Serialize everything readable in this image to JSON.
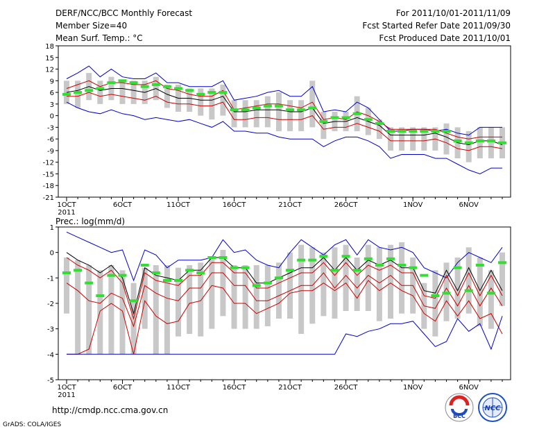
{
  "header": {
    "title": "DERF/NCC/BCC Monthly Forecast",
    "member_size": "Member Size=40",
    "variable": "Mean Surf. Temp.: °C",
    "period": "For 2011/10/01-2011/11/09",
    "started": "Fcst Started Refer Date 2011/09/30",
    "produced": "Fcst Produced Date 2011/10/01"
  },
  "footer": {
    "url": "http://cmdp.ncc.cma.gov.cn",
    "grads": "GrADS: COLA/IGES",
    "logo_bcc": "BCC",
    "logo_ncc": "NCC"
  },
  "colors": {
    "envelope": "#0000cc",
    "spread": "#cc0000",
    "mean": "#000000",
    "member_bar": "#c8c8c8",
    "marker": "#33dd33"
  },
  "chart_data": [
    {
      "type": "line",
      "title": "Mean Surf. Temp.: °C",
      "xlabel": "",
      "ylabel": "",
      "x": [
        1,
        2,
        3,
        4,
        5,
        6,
        7,
        8,
        9,
        10,
        11,
        12,
        13,
        14,
        15,
        16,
        17,
        18,
        19,
        20,
        21,
        22,
        23,
        24,
        25,
        26,
        27,
        28,
        29,
        30,
        31,
        32,
        33,
        34,
        35,
        36,
        37,
        38,
        39,
        40
      ],
      "ylim": [
        -21,
        18
      ],
      "yticks": [
        18,
        15,
        12,
        9,
        6,
        3,
        0,
        -3,
        -6,
        -9,
        -12,
        -15,
        -18,
        -21
      ],
      "xticks": [
        {
          "x": 1,
          "label": "1OCT"
        },
        {
          "x": 6,
          "label": "6OCT"
        },
        {
          "x": 11,
          "label": "11OCT"
        },
        {
          "x": 16,
          "label": "16OCT"
        },
        {
          "x": 21,
          "label": "21OCT"
        },
        {
          "x": 26,
          "label": "26OCT"
        },
        {
          "x": 32,
          "label": "1NOV"
        },
        {
          "x": 37,
          "label": "6NOV"
        }
      ],
      "year_label": "2011",
      "series": [
        {
          "name": "max",
          "values": [
            9.5,
            11,
            12.8,
            10,
            12,
            10,
            9.5,
            9.5,
            11,
            8.5,
            8.5,
            7.5,
            7.5,
            7.5,
            9,
            4,
            4.5,
            5,
            6,
            6.5,
            5,
            5,
            7.5,
            1,
            1.5,
            1,
            3.5,
            2,
            -1,
            -4,
            -4,
            -3.5,
            -3.5,
            -4,
            -3.5,
            -4.5,
            -5,
            -3,
            -3,
            -3
          ]
        },
        {
          "name": "upper",
          "values": [
            7,
            8,
            9,
            7.5,
            8.5,
            8.5,
            8,
            8,
            9,
            7,
            6.5,
            5.5,
            5,
            5,
            6.5,
            1.5,
            2,
            2.5,
            3,
            3,
            2.5,
            2,
            3.5,
            -1,
            -0.5,
            -1,
            1,
            0,
            -1.5,
            -3.5,
            -3.5,
            -3.5,
            -3.5,
            -3.5,
            -4.5,
            -5.5,
            -6,
            -5.5,
            -5.5,
            -5.5
          ]
        },
        {
          "name": "mean",
          "values": [
            6,
            6.5,
            7.5,
            6.5,
            7,
            7,
            6.5,
            6,
            7,
            5.5,
            4.5,
            4.5,
            4,
            4,
            5,
            1,
            1,
            1.5,
            1.5,
            1.5,
            1,
            1,
            2,
            -2,
            -1.5,
            -1.5,
            -0.5,
            -1.5,
            -2.5,
            -5,
            -5,
            -5,
            -5,
            -4.5,
            -5.5,
            -7,
            -7.5,
            -6.5,
            -6.5,
            -7.5
          ]
        },
        {
          "name": "lower",
          "values": [
            5,
            5,
            6,
            5,
            5.5,
            5,
            4.5,
            4,
            5,
            3.5,
            3,
            3,
            2.5,
            2.5,
            3.5,
            -1,
            -1,
            -0.5,
            -0.5,
            -1,
            -1,
            -1,
            0,
            -3.5,
            -3,
            -3,
            -2,
            -3,
            -4,
            -6.5,
            -6.5,
            -6.5,
            -6.5,
            -6,
            -7,
            -8.5,
            -9,
            -8,
            -8,
            -8.5
          ]
        },
        {
          "name": "min",
          "values": [
            3.5,
            2,
            1,
            0.5,
            1.5,
            0.5,
            0,
            -1,
            -0.5,
            -1,
            -1.5,
            -1,
            -2,
            -3,
            -1.5,
            -4,
            -4,
            -4.5,
            -4.5,
            -5.5,
            -6,
            -6,
            -6,
            -8,
            -6.5,
            -5.5,
            -5.5,
            -6.5,
            -8,
            -11,
            -10,
            -10,
            -10,
            -11,
            -11,
            -12.5,
            -14,
            -15,
            -13.5,
            -13.5
          ]
        }
      ],
      "bars": {
        "lows": [
          3,
          2,
          4,
          3,
          4,
          3,
          3,
          3,
          4,
          2,
          1,
          1,
          0,
          -1,
          0,
          -3,
          -3,
          -3,
          -3,
          -4,
          -4,
          -4,
          -3,
          -6,
          -4,
          -4,
          -4,
          -5,
          -6,
          -9,
          -9,
          -9,
          -9,
          -9,
          -10,
          -11,
          -12,
          -11,
          -11,
          -11
        ],
        "highs": [
          9,
          9,
          11,
          9,
          10,
          9,
          9,
          9,
          10,
          8,
          8,
          7,
          7,
          7,
          8,
          4,
          4,
          4,
          5,
          6,
          4,
          4,
          9,
          1,
          1,
          1,
          5,
          2,
          -1,
          -3,
          -3,
          -3,
          -3,
          -3,
          -2,
          -3,
          -4,
          -3,
          -3,
          -3
        ]
      },
      "markers": [
        5.5,
        6,
        6.5,
        7,
        8.5,
        9,
        8.5,
        7.5,
        8,
        7.5,
        7,
        6.5,
        5.5,
        6,
        6,
        1.5,
        1.5,
        2,
        2.5,
        2.5,
        1.5,
        1.5,
        2,
        -1.5,
        -0.5,
        -0.5,
        0.5,
        -1,
        -2,
        -4,
        -4,
        -4,
        -4,
        -4,
        -4,
        -6.5,
        -7,
        -6.5,
        -6.5,
        -7
      ]
    },
    {
      "type": "line",
      "title": "Prec.: log(mm/d)",
      "xlabel": "",
      "ylabel": "",
      "x": [
        1,
        2,
        3,
        4,
        5,
        6,
        7,
        8,
        9,
        10,
        11,
        12,
        13,
        14,
        15,
        16,
        17,
        18,
        19,
        20,
        21,
        22,
        23,
        24,
        25,
        26,
        27,
        28,
        29,
        30,
        31,
        32,
        33,
        34,
        35,
        36,
        37,
        38,
        39,
        40
      ],
      "ylim": [
        -5,
        1
      ],
      "yticks": [
        1,
        0,
        -1,
        -2,
        -3,
        -4,
        -5
      ],
      "xticks": [
        {
          "x": 1,
          "label": "1OCT"
        },
        {
          "x": 6,
          "label": "6OCT"
        },
        {
          "x": 11,
          "label": "11OCT"
        },
        {
          "x": 16,
          "label": "16OCT"
        },
        {
          "x": 21,
          "label": "21OCT"
        },
        {
          "x": 26,
          "label": "26OCT"
        },
        {
          "x": 32,
          "label": "1NOV"
        },
        {
          "x": 37,
          "label": "6NOV"
        }
      ],
      "year_label": "2011",
      "series": [
        {
          "name": "max",
          "values": [
            0.8,
            0.6,
            0.4,
            0.2,
            0.0,
            0.1,
            -1.1,
            0.1,
            -0.1,
            -0.6,
            -0.3,
            -0.3,
            -0.3,
            -0.2,
            0.5,
            0.0,
            0.1,
            -0.3,
            -0.5,
            -0.6,
            0.0,
            0.5,
            0.2,
            -0.1,
            0.3,
            0.5,
            -0.1,
            0.5,
            0.2,
            0.1,
            0.2,
            0.0,
            -0.6,
            -0.8,
            -1.0,
            -0.4,
            0.0,
            -0.2,
            -0.4,
            0.2
          ]
        },
        {
          "name": "mean",
          "values": [
            0.0,
            -0.3,
            -0.5,
            -0.8,
            -0.5,
            -1.0,
            -2.4,
            -0.6,
            -0.9,
            -1.0,
            -1.1,
            -0.7,
            -0.7,
            -0.2,
            -0.2,
            -0.6,
            -0.6,
            -1.2,
            -1.2,
            -1.0,
            -0.8,
            -0.6,
            -0.6,
            -0.2,
            -0.7,
            -0.2,
            -0.7,
            -0.3,
            -0.5,
            -0.3,
            -0.6,
            -0.6,
            -1.5,
            -1.6,
            -0.7,
            -1.5,
            -0.6,
            -1.5,
            -0.7,
            -1.5
          ]
        },
        {
          "name": "upper",
          "values": [
            -0.2,
            -0.5,
            -0.7,
            -1.0,
            -0.7,
            -1.2,
            -2.6,
            -0.8,
            -1.1,
            -1.2,
            -1.3,
            -0.9,
            -0.9,
            -0.4,
            -0.4,
            -0.8,
            -0.8,
            -1.4,
            -1.4,
            -1.2,
            -1.0,
            -0.8,
            -0.8,
            -0.4,
            -0.9,
            -0.4,
            -0.9,
            -0.5,
            -0.7,
            -0.5,
            -0.8,
            -0.8,
            -1.7,
            -1.8,
            -0.9,
            -1.7,
            -0.8,
            -1.7,
            -0.9,
            -1.7
          ]
        },
        {
          "name": "lower",
          "values": [
            -1.2,
            -1.5,
            -1.9,
            -2.0,
            -1.6,
            -1.8,
            -2.9,
            -1.3,
            -1.6,
            -1.8,
            -1.9,
            -1.4,
            -1.4,
            -0.8,
            -0.8,
            -1.3,
            -1.3,
            -1.9,
            -1.9,
            -1.7,
            -1.5,
            -1.3,
            -1.3,
            -0.8,
            -1.4,
            -0.9,
            -1.4,
            -0.9,
            -1.2,
            -0.9,
            -1.3,
            -1.3,
            -2.1,
            -2.2,
            -1.4,
            -2.1,
            -1.3,
            -2.1,
            -1.4,
            -2.1
          ]
        },
        {
          "name": "p10",
          "values": [
            -4,
            -4,
            -3.8,
            -2.3,
            -2.0,
            -2.3,
            -4.0,
            -1.9,
            -2.5,
            -2.8,
            -2.7,
            -2.0,
            -1.9,
            -1.3,
            -1.4,
            -2.0,
            -2.0,
            -2.4,
            -2.2,
            -2.0,
            -1.6,
            -1.5,
            -1.5,
            -1.2,
            -1.5,
            -1.2,
            -1.8,
            -1.1,
            -1.5,
            -1.2,
            -1.5,
            -1.7,
            -2.4,
            -2.7,
            -1.9,
            -2.5,
            -1.9,
            -2.6,
            -2.4,
            -3.2
          ]
        },
        {
          "name": "min",
          "values": [
            -4,
            -4,
            -4,
            -4,
            -4,
            -4,
            -4,
            -4,
            -4,
            -4,
            -4,
            -4,
            -4,
            -4,
            -4,
            -4,
            -4,
            -4,
            -4,
            -4,
            -4,
            -4,
            -4,
            -4,
            -4,
            -3.2,
            -3.3,
            -3.1,
            -3.0,
            -2.8,
            -2.8,
            -2.7,
            -3.2,
            -3.7,
            -3.5,
            -2.6,
            -3.1,
            -2.8,
            -3.8,
            -2.5
          ]
        }
      ],
      "bars": {
        "lows": [
          -2.4,
          -4,
          -4,
          -4,
          -4,
          -4,
          -4,
          -3,
          -4,
          -4,
          -3.3,
          -3.2,
          -3.3,
          -3,
          -2.5,
          -3,
          -3,
          -3,
          -2.9,
          -2.6,
          -2.6,
          -3.2,
          -2.8,
          -2.5,
          -2.6,
          -2.3,
          -2.3,
          -2.3,
          -2.7,
          -2.6,
          -2.4,
          -2.4,
          -3.0,
          -3.3,
          -2.7,
          -2.6,
          -2.4,
          -2.9,
          -3.0,
          -2.1
        ],
        "highs": [
          -0.2,
          -0.3,
          -0.5,
          -0.7,
          -0.5,
          -0.7,
          -1.2,
          -0.6,
          -0.5,
          -0.5,
          -0.6,
          -0.5,
          -0.4,
          -0.2,
          0.1,
          -0.5,
          -0.5,
          -0.5,
          -0.5,
          -0.4,
          0.0,
          0.3,
          0.2,
          0.0,
          0.2,
          0.3,
          -0.2,
          0.3,
          0.2,
          0.3,
          0.4,
          -0.2,
          -1.2,
          -0.7,
          -0.4,
          -0.2,
          0.2,
          -0.2,
          -0.7,
          0.0
        ]
      },
      "markers": [
        -0.8,
        -0.7,
        -1.2,
        -1.7,
        -0.9,
        -0.9,
        -1.9,
        -0.5,
        -0.8,
        -1.1,
        -1.1,
        -0.7,
        -0.8,
        -0.2,
        -0.2,
        -0.6,
        -0.6,
        -1.3,
        -1.2,
        -1.0,
        -0.7,
        -0.3,
        -0.3,
        -0.15,
        -0.7,
        -0.15,
        -0.7,
        -0.25,
        -0.5,
        -0.25,
        -0.5,
        -0.6,
        -0.9,
        -1.7,
        -1.6,
        -0.6,
        -1.5,
        -0.5,
        -1.6,
        -0.4
      ]
    }
  ]
}
